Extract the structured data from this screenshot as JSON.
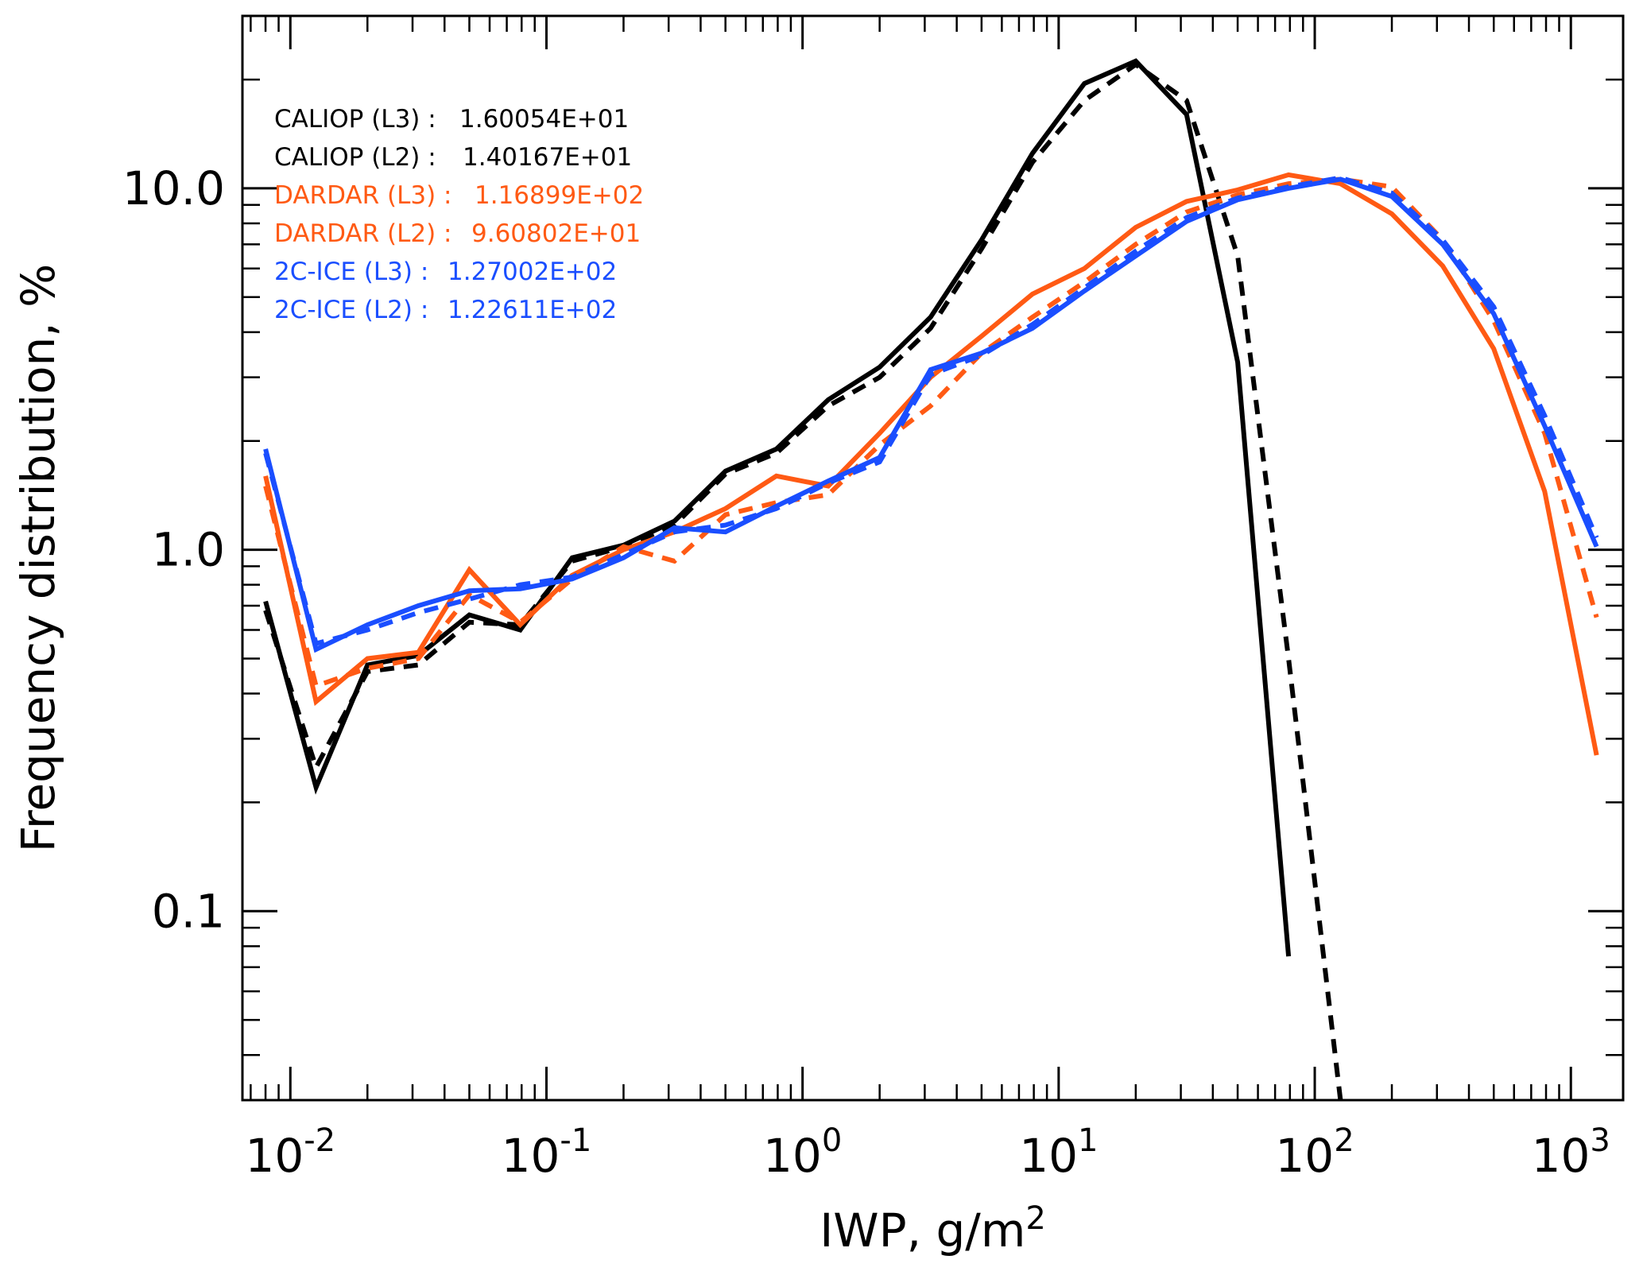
{
  "chart_data": {
    "type": "line",
    "title": "",
    "xlabel": "IWP, g/m",
    "xlabel_superscript": "2",
    "ylabel": "Frequency distribution, %",
    "xscale": "log",
    "yscale": "log",
    "xlim": [
      0.0065,
      1600
    ],
    "ylim": [
      0.03,
      30
    ],
    "x_ticks": [
      {
        "value": 0.01,
        "base": "10",
        "exp": "-2"
      },
      {
        "value": 0.1,
        "base": "10",
        "exp": "-1"
      },
      {
        "value": 1,
        "base": "10",
        "exp": "0"
      },
      {
        "value": 10,
        "base": "10",
        "exp": "1"
      },
      {
        "value": 100,
        "base": "10",
        "exp": "2"
      },
      {
        "value": 1000,
        "base": "10",
        "exp": "3"
      }
    ],
    "y_ticks": [
      {
        "value": 0.1,
        "label": "0.1"
      },
      {
        "value": 1,
        "label": "1.0"
      },
      {
        "value": 10,
        "label": "10.0"
      }
    ],
    "grid": false,
    "legend_position": "top-left",
    "series": [
      {
        "name": "CALIOP (L3)",
        "value_label": "1.60054E+01",
        "color": "#000000",
        "dash": "solid",
        "x": [
          0.008,
          0.0126,
          0.02,
          0.0316,
          0.05,
          0.079,
          0.126,
          0.2,
          0.316,
          0.5,
          0.79,
          1.26,
          2.0,
          3.16,
          5.0,
          7.9,
          12.6,
          20,
          31.6,
          50,
          79
        ],
        "y": [
          0.72,
          0.22,
          0.48,
          0.51,
          0.66,
          0.6,
          0.95,
          1.03,
          1.2,
          1.65,
          1.9,
          2.6,
          3.2,
          4.4,
          7.2,
          12.5,
          19.5,
          22.5,
          16,
          3.3,
          0.075
        ]
      },
      {
        "name": "CALIOP (L2)",
        "value_label": "1.40167E+01",
        "color": "#000000",
        "dash": "dashed",
        "x": [
          0.008,
          0.0126,
          0.02,
          0.0316,
          0.05,
          0.079,
          0.126,
          0.2,
          0.316,
          0.5,
          0.79,
          1.26,
          2.0,
          3.16,
          5.0,
          7.9,
          12.6,
          20,
          31.6,
          50,
          79,
          126
        ],
        "y": [
          0.68,
          0.25,
          0.46,
          0.48,
          0.63,
          0.62,
          0.93,
          1.02,
          1.17,
          1.62,
          1.85,
          2.5,
          3.0,
          4.1,
          6.8,
          11.8,
          17.5,
          22,
          17.5,
          6.5,
          0.5,
          0.03
        ]
      },
      {
        "name": "DARDAR (L3)",
        "value_label": "1.16899E+02",
        "color": "#FF5A14",
        "dash": "solid",
        "x": [
          0.008,
          0.0126,
          0.02,
          0.0316,
          0.05,
          0.079,
          0.126,
          0.2,
          0.316,
          0.5,
          0.79,
          1.26,
          2.0,
          3.16,
          5.0,
          7.9,
          12.6,
          20,
          31.6,
          50,
          79,
          126,
          200,
          316,
          500,
          790,
          1260
        ],
        "y": [
          1.6,
          0.38,
          0.5,
          0.52,
          0.88,
          0.62,
          0.85,
          1.0,
          1.12,
          1.3,
          1.6,
          1.5,
          2.1,
          3.0,
          3.9,
          5.1,
          6.0,
          7.8,
          9.2,
          9.9,
          10.9,
          10.3,
          8.5,
          6.1,
          3.6,
          1.45,
          0.27
        ]
      },
      {
        "name": "DARDAR (L2)",
        "value_label": "9.60802E+01",
        "color": "#FF5A14",
        "dash": "dashed",
        "x": [
          0.008,
          0.0126,
          0.02,
          0.0316,
          0.05,
          0.079,
          0.126,
          0.2,
          0.316,
          0.5,
          0.79,
          1.26,
          2.0,
          3.16,
          5.0,
          7.9,
          12.6,
          20,
          31.6,
          50,
          79,
          126,
          200,
          316,
          500,
          790,
          1260
        ],
        "y": [
          1.5,
          0.42,
          0.47,
          0.5,
          0.75,
          0.63,
          0.83,
          1.02,
          0.93,
          1.25,
          1.35,
          1.42,
          1.95,
          2.5,
          3.5,
          4.4,
          5.5,
          7.0,
          8.6,
          9.6,
          10.3,
          10.6,
          10.1,
          7.2,
          4.3,
          2.1,
          0.65
        ]
      },
      {
        "name": "2C-ICE (L3)",
        "value_label": "1.27002E+02",
        "color": "#1A4EFF",
        "dash": "solid",
        "x": [
          0.008,
          0.0126,
          0.02,
          0.0316,
          0.05,
          0.079,
          0.126,
          0.2,
          0.316,
          0.5,
          0.79,
          1.26,
          2.0,
          3.16,
          5.0,
          7.9,
          12.6,
          20,
          31.6,
          50,
          79,
          126,
          200,
          316,
          500,
          790,
          1260
        ],
        "y": [
          1.9,
          0.53,
          0.62,
          0.7,
          0.77,
          0.78,
          0.83,
          0.95,
          1.15,
          1.12,
          1.32,
          1.55,
          1.8,
          3.15,
          3.5,
          4.1,
          5.2,
          6.5,
          8.1,
          9.3,
          10.0,
          10.6,
          9.5,
          7.0,
          4.5,
          2.2,
          1.02
        ]
      },
      {
        "name": "2C-ICE (L2)",
        "value_label": "1.22611E+02",
        "color": "#1A4EFF",
        "dash": "dashed",
        "x": [
          0.008,
          0.0126,
          0.02,
          0.0316,
          0.05,
          0.079,
          0.126,
          0.2,
          0.316,
          0.5,
          0.79,
          1.26,
          2.0,
          3.16,
          5.0,
          7.9,
          12.6,
          20,
          31.6,
          50,
          79,
          126,
          200,
          316,
          500,
          790,
          1260
        ],
        "y": [
          1.85,
          0.55,
          0.6,
          0.67,
          0.73,
          0.8,
          0.84,
          0.97,
          1.12,
          1.17,
          1.3,
          1.53,
          1.75,
          3.05,
          3.45,
          4.2,
          5.3,
          6.7,
          8.3,
          9.4,
          10.1,
          10.7,
          9.7,
          7.2,
          4.7,
          2.35,
          1.08
        ]
      }
    ]
  }
}
